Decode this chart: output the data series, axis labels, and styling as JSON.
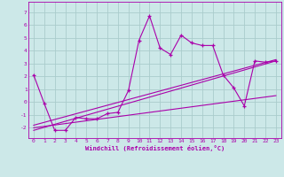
{
  "xlabel": "Windchill (Refroidissement éolien,°C)",
  "xlim": [
    -0.5,
    23.5
  ],
  "ylim": [
    -2.8,
    7.8
  ],
  "yticks": [
    -2,
    -1,
    0,
    1,
    2,
    3,
    4,
    5,
    6,
    7
  ],
  "xticks": [
    0,
    1,
    2,
    3,
    4,
    5,
    6,
    7,
    8,
    9,
    10,
    11,
    12,
    13,
    14,
    15,
    16,
    17,
    18,
    19,
    20,
    21,
    22,
    23
  ],
  "background_color": "#cce8e8",
  "grid_color": "#aacccc",
  "line_color": "#aa00aa",
  "main_series_x": [
    0,
    1,
    2,
    3,
    4,
    5,
    6,
    7,
    8,
    9,
    10,
    11,
    12,
    13,
    14,
    15,
    16,
    17,
    18,
    19,
    20,
    21,
    22,
    23
  ],
  "main_series_y": [
    2.1,
    -0.1,
    -2.2,
    -2.2,
    -1.2,
    -1.3,
    -1.3,
    -0.9,
    -0.8,
    0.9,
    4.8,
    6.7,
    4.2,
    3.7,
    5.2,
    4.6,
    4.4,
    4.4,
    2.1,
    1.1,
    -0.3,
    3.2,
    3.1,
    3.2
  ],
  "line1_x": [
    0,
    23
  ],
  "line1_y": [
    -2.2,
    3.2
  ],
  "line2_x": [
    0,
    23
  ],
  "line2_y": [
    -2.0,
    0.5
  ],
  "line3_x": [
    0,
    23
  ],
  "line3_y": [
    -1.8,
    3.3
  ]
}
